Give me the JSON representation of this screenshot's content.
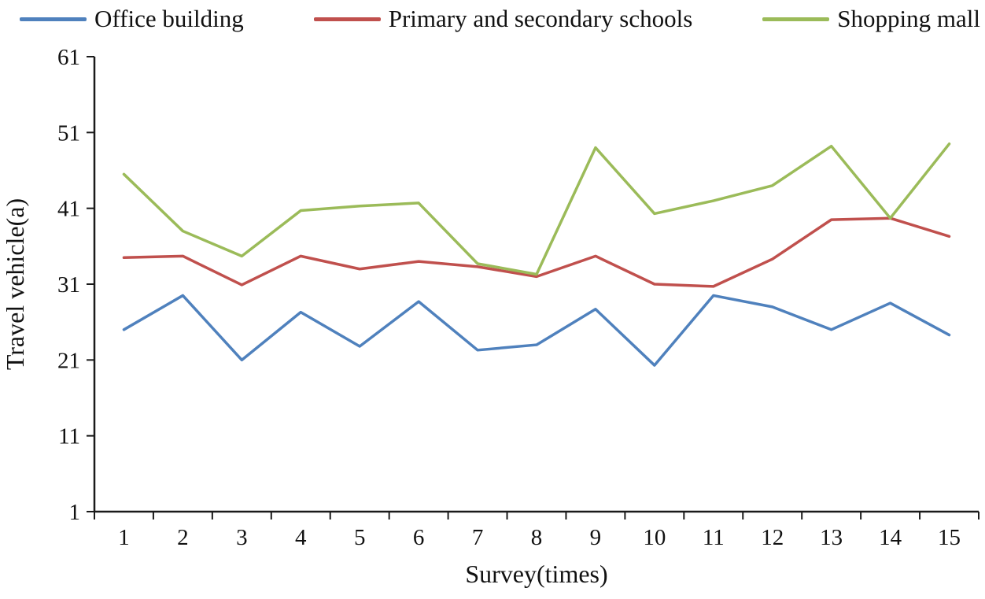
{
  "chart_data": {
    "type": "line",
    "title": "",
    "xlabel": "Survey(times)",
    "ylabel": "Travel vehicle(a)",
    "categories": [
      "1",
      "2",
      "3",
      "4",
      "5",
      "6",
      "7",
      "8",
      "9",
      "10",
      "11",
      "12",
      "13",
      "14",
      "15"
    ],
    "ylim": [
      1,
      61
    ],
    "yticks": [
      1,
      11,
      21,
      31,
      41,
      51,
      61
    ],
    "grid": false,
    "legend_position": "top",
    "series": [
      {
        "name": "Office building",
        "color": "#4F81BD",
        "values": [
          25,
          29.5,
          21,
          27.3,
          22.8,
          28.7,
          22.3,
          23,
          27.7,
          20.3,
          29.5,
          28,
          25,
          28.5,
          24.3
        ]
      },
      {
        "name": "Primary and secondary schools",
        "color": "#C0504D",
        "values": [
          34.5,
          34.7,
          30.9,
          34.7,
          33,
          34,
          33.3,
          32,
          34.7,
          31,
          30.7,
          34.3,
          39.5,
          39.7,
          37.3
        ]
      },
      {
        "name": "Shopping mall",
        "color": "#9BBB59",
        "values": [
          45.5,
          38,
          34.7,
          40.7,
          41.3,
          41.7,
          33.7,
          32.3,
          49,
          40.3,
          42,
          44,
          49.2,
          39.7,
          49.5
        ]
      }
    ]
  }
}
